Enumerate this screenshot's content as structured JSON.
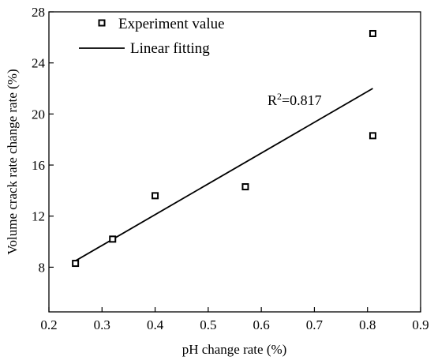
{
  "chart_data": {
    "type": "scatter",
    "xlabel": "pH change rate (%)",
    "ylabel": "Volume crack rate change rate (%)",
    "xlim": [
      0.2,
      0.9
    ],
    "ylim": [
      4.5,
      28
    ],
    "x_ticks": [
      0.2,
      0.3,
      0.4,
      0.5,
      0.6,
      0.7,
      0.8,
      0.9
    ],
    "x_tick_labels": [
      "0.2",
      "0.3",
      "0.4",
      "0.5",
      "0.6",
      "0.7",
      "0.8",
      "0.9"
    ],
    "y_ticks": [
      8,
      12,
      16,
      20,
      24,
      28
    ],
    "y_tick_labels": [
      "8",
      "12",
      "16",
      "20",
      "24",
      "28"
    ],
    "grid": false,
    "legend_position": "top-left",
    "series": [
      {
        "name": "Experiment value",
        "marker": "open-square",
        "color": "#000000",
        "points": [
          {
            "x": 0.25,
            "y": 8.3
          },
          {
            "x": 0.32,
            "y": 10.2
          },
          {
            "x": 0.4,
            "y": 13.6
          },
          {
            "x": 0.57,
            "y": 14.3
          },
          {
            "x": 0.81,
            "y": 18.3
          },
          {
            "x": 0.81,
            "y": 26.3
          }
        ]
      },
      {
        "name": "Linear fitting",
        "type": "line",
        "color": "#000000",
        "points": [
          {
            "x": 0.25,
            "y": 8.5
          },
          {
            "x": 0.81,
            "y": 22.0
          }
        ]
      }
    ],
    "annotation": {
      "base": "R",
      "sup": "2",
      "rest": "=0.817"
    }
  }
}
